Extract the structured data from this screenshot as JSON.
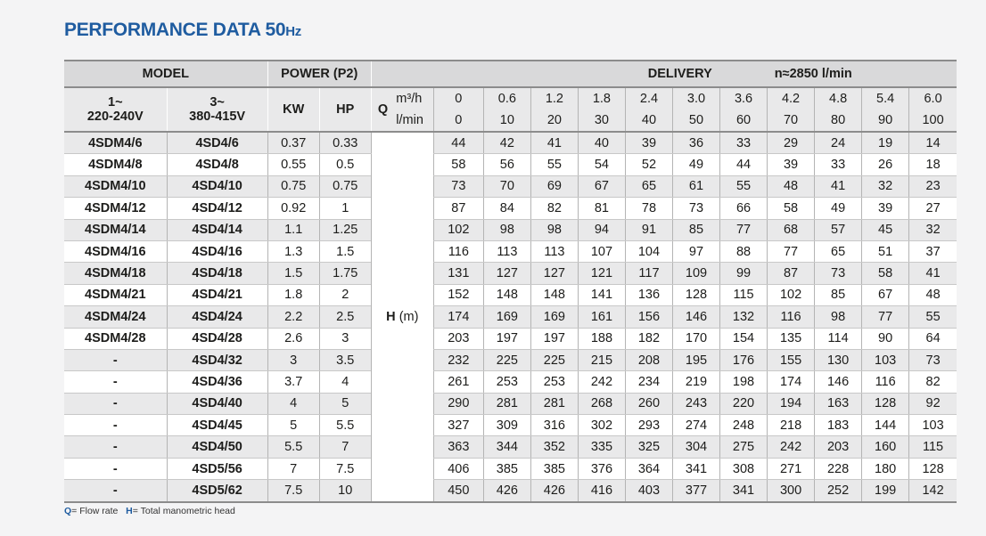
{
  "title": {
    "main": "PERFORMANCE DATA 50",
    "unit": "Hz"
  },
  "headers": {
    "model": "MODEL",
    "power": "POWER (P2)",
    "delivery": "DELIVERY",
    "speed": "n≈2850 l/min",
    "single_phase_1": "1~",
    "single_phase_2": "220-240V",
    "three_phase_1": "3~",
    "three_phase_2": "380-415V",
    "kw": "KW",
    "hp": "HP",
    "q": "Q",
    "unit_m3h": "m³/h",
    "unit_lmin": "l/min",
    "h_label": "H",
    "h_unit": "(m)"
  },
  "flow_m3h": [
    "0",
    "0.6",
    "1.2",
    "1.8",
    "2.4",
    "3.0",
    "3.6",
    "4.2",
    "4.8",
    "5.4",
    "6.0"
  ],
  "flow_lmin": [
    "0",
    "10",
    "20",
    "30",
    "40",
    "50",
    "60",
    "70",
    "80",
    "90",
    "100"
  ],
  "rows": [
    {
      "m1": "4SDM4/6",
      "m3": "4SD4/6",
      "kw": "0.37",
      "hp": "0.33",
      "h": [
        "44",
        "42",
        "41",
        "40",
        "39",
        "36",
        "33",
        "29",
        "24",
        "19",
        "14"
      ]
    },
    {
      "m1": "4SDM4/8",
      "m3": "4SD4/8",
      "kw": "0.55",
      "hp": "0.5",
      "h": [
        "58",
        "56",
        "55",
        "54",
        "52",
        "49",
        "44",
        "39",
        "33",
        "26",
        "18"
      ]
    },
    {
      "m1": "4SDM4/10",
      "m3": "4SD4/10",
      "kw": "0.75",
      "hp": "0.75",
      "h": [
        "73",
        "70",
        "69",
        "67",
        "65",
        "61",
        "55",
        "48",
        "41",
        "32",
        "23"
      ]
    },
    {
      "m1": "4SDM4/12",
      "m3": "4SD4/12",
      "kw": "0.92",
      "hp": "1",
      "h": [
        "87",
        "84",
        "82",
        "81",
        "78",
        "73",
        "66",
        "58",
        "49",
        "39",
        "27"
      ]
    },
    {
      "m1": "4SDM4/14",
      "m3": "4SD4/14",
      "kw": "1.1",
      "hp": "1.25",
      "h": [
        "102",
        "98",
        "98",
        "94",
        "91",
        "85",
        "77",
        "68",
        "57",
        "45",
        "32"
      ]
    },
    {
      "m1": "4SDM4/16",
      "m3": "4SD4/16",
      "kw": "1.3",
      "hp": "1.5",
      "h": [
        "116",
        "113",
        "113",
        "107",
        "104",
        "97",
        "88",
        "77",
        "65",
        "51",
        "37"
      ]
    },
    {
      "m1": "4SDM4/18",
      "m3": "4SD4/18",
      "kw": "1.5",
      "hp": "1.75",
      "h": [
        "131",
        "127",
        "127",
        "121",
        "117",
        "109",
        "99",
        "87",
        "73",
        "58",
        "41"
      ]
    },
    {
      "m1": "4SDM4/21",
      "m3": "4SD4/21",
      "kw": "1.8",
      "hp": "2",
      "h": [
        "152",
        "148",
        "148",
        "141",
        "136",
        "128",
        "115",
        "102",
        "85",
        "67",
        "48"
      ]
    },
    {
      "m1": "4SDM4/24",
      "m3": "4SD4/24",
      "kw": "2.2",
      "hp": "2.5",
      "h": [
        "174",
        "169",
        "169",
        "161",
        "156",
        "146",
        "132",
        "116",
        "98",
        "77",
        "55"
      ]
    },
    {
      "m1": "4SDM4/28",
      "m3": "4SD4/28",
      "kw": "2.6",
      "hp": "3",
      "h": [
        "203",
        "197",
        "197",
        "188",
        "182",
        "170",
        "154",
        "135",
        "114",
        "90",
        "64"
      ]
    },
    {
      "m1": "-",
      "m3": "4SD4/32",
      "kw": "3",
      "hp": "3.5",
      "h": [
        "232",
        "225",
        "225",
        "215",
        "208",
        "195",
        "176",
        "155",
        "130",
        "103",
        "73"
      ]
    },
    {
      "m1": "-",
      "m3": "4SD4/36",
      "kw": "3.7",
      "hp": "4",
      "h": [
        "261",
        "253",
        "253",
        "242",
        "234",
        "219",
        "198",
        "174",
        "146",
        "116",
        "82"
      ]
    },
    {
      "m1": "-",
      "m3": "4SD4/40",
      "kw": "4",
      "hp": "5",
      "h": [
        "290",
        "281",
        "281",
        "268",
        "260",
        "243",
        "220",
        "194",
        "163",
        "128",
        "92"
      ]
    },
    {
      "m1": "-",
      "m3": "4SD4/45",
      "kw": "5",
      "hp": "5.5",
      "h": [
        "327",
        "309",
        "316",
        "302",
        "293",
        "274",
        "248",
        "218",
        "183",
        "144",
        "103"
      ]
    },
    {
      "m1": "-",
      "m3": "4SD4/50",
      "kw": "5.5",
      "hp": "7",
      "h": [
        "363",
        "344",
        "352",
        "335",
        "325",
        "304",
        "275",
        "242",
        "203",
        "160",
        "115"
      ]
    },
    {
      "m1": "-",
      "m3": "4SD5/56",
      "kw": "7",
      "hp": "7.5",
      "h": [
        "406",
        "385",
        "385",
        "376",
        "364",
        "341",
        "308",
        "271",
        "228",
        "180",
        "128"
      ]
    },
    {
      "m1": "-",
      "m3": "4SD5/62",
      "kw": "7.5",
      "hp": "10",
      "h": [
        "450",
        "426",
        "426",
        "416",
        "403",
        "377",
        "341",
        "300",
        "252",
        "199",
        "142"
      ]
    }
  ],
  "legend": {
    "q_key": "Q",
    "q_text": "= Flow rate",
    "h_key": "H",
    "h_text": "= Total manometric head"
  }
}
